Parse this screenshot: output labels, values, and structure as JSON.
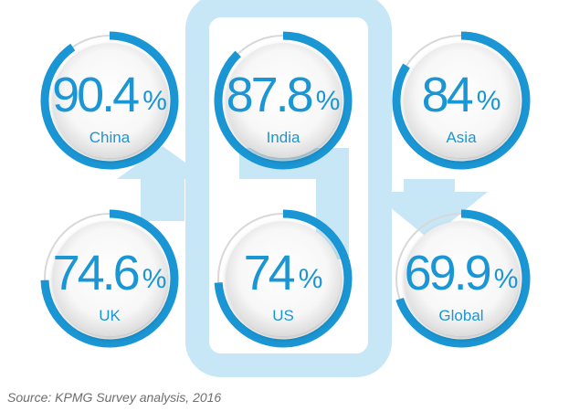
{
  "chart_data": {
    "type": "gauge",
    "unit": "%",
    "max": 100,
    "labels": [
      "China",
      "India",
      "Asia",
      "UK",
      "US",
      "Global"
    ],
    "display_values": [
      "90.4",
      "87.8",
      "84",
      "74.6",
      "74",
      "69.9"
    ],
    "values": [
      90.4,
      87.8,
      84,
      74.6,
      74,
      69.9
    ]
  },
  "source": "Source: KPMG Survey analysis, 2016",
  "colors": {
    "arc": "#1a96d4",
    "text": "#1a96d4",
    "track": "#d8d8d8",
    "background_shape": "#c7e6f6",
    "source_text": "#6e6e6e"
  }
}
